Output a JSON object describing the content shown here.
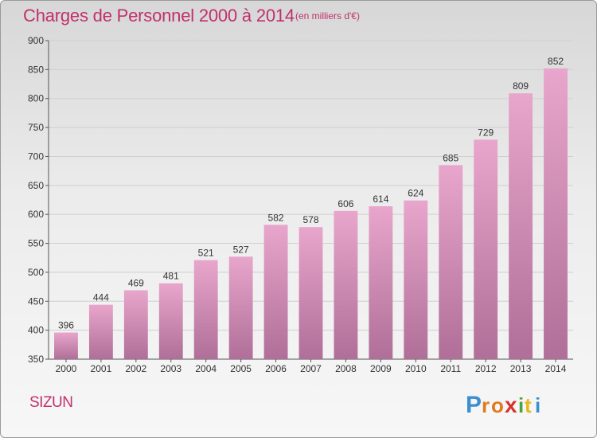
{
  "header": {
    "title": "Charges de Personnel 2000 à 2014",
    "subtitle": "(en milliers d'€)"
  },
  "footer": {
    "commune": "SIZUN",
    "logo_text": "Proxiti"
  },
  "colors": {
    "title": "#c0306b",
    "bar_top": "#e8a6cc",
    "bar_bottom": "#b06f98",
    "grid": "#cfcfcf"
  },
  "chart_data": {
    "type": "bar",
    "title": "Charges de Personnel 2000 à 2014",
    "subtitle": "(en milliers d'€)",
    "xlabel": "",
    "ylabel": "",
    "categories": [
      "2000",
      "2001",
      "2002",
      "2003",
      "2004",
      "2005",
      "2006",
      "2007",
      "2008",
      "2009",
      "2010",
      "2011",
      "2012",
      "2013",
      "2014"
    ],
    "values": [
      396,
      444,
      469,
      481,
      521,
      527,
      582,
      578,
      606,
      614,
      624,
      685,
      729,
      809,
      852
    ],
    "ylim": [
      350,
      900
    ],
    "yticks": [
      350,
      400,
      450,
      500,
      550,
      600,
      650,
      700,
      750,
      800,
      850,
      900
    ],
    "grid": true
  }
}
